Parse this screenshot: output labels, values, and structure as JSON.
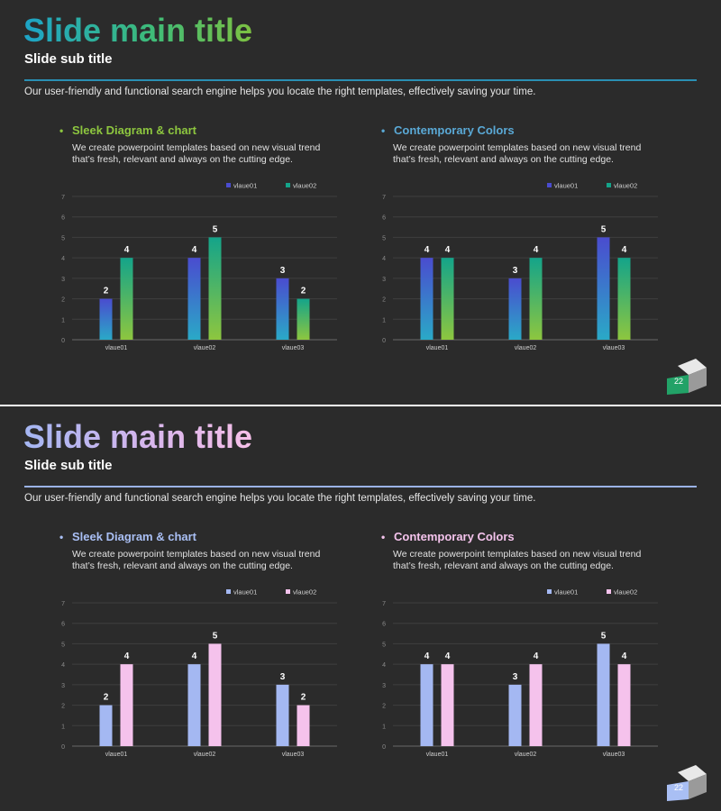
{
  "slides": [
    {
      "main_title": "Slide main title",
      "sub_title": "Slide sub title",
      "description": "Our user-friendly and functional search engine helps you locate the right templates, effectively saving your time.",
      "sections": [
        {
          "bullet": "•",
          "title": "Sleek Diagram & chart",
          "text": "We create powerpoint templates based on new visual trend that’s fresh, relevant  and always on the cutting edge."
        },
        {
          "bullet": "•",
          "title": "Contemporary Colors",
          "text": "We create powerpoint templates based on new visual trend that’s fresh, relevant  and always on the cutting edge."
        }
      ],
      "page_number": "22",
      "colors": {
        "heading_left": "#8dc63f",
        "heading_right": "#5aa9d6",
        "badge_front": "#22a267",
        "badge_back": "#e8e8e8"
      }
    },
    {
      "main_title": "Slide main title",
      "sub_title": "Slide sub title",
      "description": "Our user-friendly and functional search engine helps you locate the right templates, effectively saving your time.",
      "sections": [
        {
          "bullet": "•",
          "title": "Sleek Diagram & chart",
          "text": "We create powerpoint templates based on new visual trend that’s fresh, relevant  and always on the cutting edge."
        },
        {
          "bullet": "•",
          "title": "Contemporary Colors",
          "text": "We create powerpoint templates based on new visual trend that’s fresh, relevant  and always on the cutting edge."
        }
      ],
      "page_number": "22",
      "colors": {
        "heading_left": "#a9bff4",
        "heading_right": "#f4c3ec",
        "badge_front": "#a9bff4",
        "badge_back": "#e8e8e8"
      }
    }
  ],
  "chart_data": [
    {
      "type": "bar",
      "categories": [
        "vlaue01",
        "vlaue02",
        "vlaue03"
      ],
      "series": [
        {
          "name": "vlaue01",
          "values": [
            2,
            4,
            3
          ],
          "color_top": "#4a4ccf",
          "color_bottom": "#2aa9c7"
        },
        {
          "name": "vlaue02",
          "values": [
            4,
            5,
            2
          ],
          "color_top": "#14a48a",
          "color_bottom": "#8dc63f"
        }
      ],
      "ylim": [
        0,
        7
      ],
      "yticks": [
        0,
        1,
        2,
        3,
        4,
        5,
        6,
        7
      ],
      "legend": "top-right",
      "data_labels": true
    },
    {
      "type": "bar",
      "categories": [
        "vlaue01",
        "vlaue02",
        "vlaue03"
      ],
      "series": [
        {
          "name": "vlaue01",
          "values": [
            4,
            3,
            5
          ],
          "color_top": "#4a4ccf",
          "color_bottom": "#2aa9c7"
        },
        {
          "name": "vlaue02",
          "values": [
            4,
            4,
            4
          ],
          "color_top": "#14a48a",
          "color_bottom": "#8dc63f"
        }
      ],
      "ylim": [
        0,
        7
      ],
      "yticks": [
        0,
        1,
        2,
        3,
        4,
        5,
        6,
        7
      ],
      "legend": "top-right",
      "data_labels": true
    },
    {
      "type": "bar",
      "categories": [
        "vlaue01",
        "vlaue02",
        "vlaue03"
      ],
      "series": [
        {
          "name": "vlaue01",
          "values": [
            2,
            4,
            3
          ],
          "color_top": "#a4b8f2",
          "color_bottom": "#a4b8f2"
        },
        {
          "name": "vlaue02",
          "values": [
            4,
            5,
            2
          ],
          "color_top": "#f5c2ec",
          "color_bottom": "#f5c2ec"
        }
      ],
      "ylim": [
        0,
        7
      ],
      "yticks": [
        0,
        1,
        2,
        3,
        4,
        5,
        6,
        7
      ],
      "legend": "top-right",
      "data_labels": true
    },
    {
      "type": "bar",
      "categories": [
        "vlaue01",
        "vlaue02",
        "vlaue03"
      ],
      "series": [
        {
          "name": "vlaue01",
          "values": [
            4,
            3,
            5
          ],
          "color_top": "#a4b8f2",
          "color_bottom": "#a4b8f2"
        },
        {
          "name": "vlaue02",
          "values": [
            4,
            4,
            4
          ],
          "color_top": "#f5c2ec",
          "color_bottom": "#f5c2ec"
        }
      ],
      "ylim": [
        0,
        7
      ],
      "yticks": [
        0,
        1,
        2,
        3,
        4,
        5,
        6,
        7
      ],
      "legend": "top-right",
      "data_labels": true
    }
  ]
}
